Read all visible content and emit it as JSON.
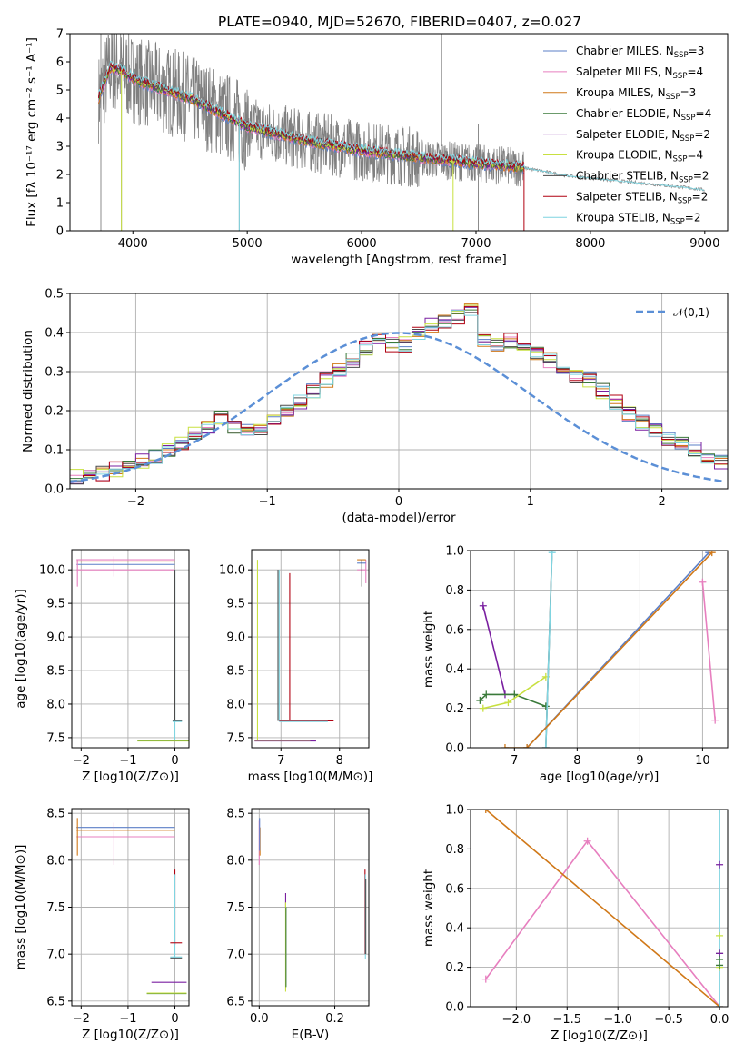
{
  "title": "PLATE=0940, MJD=52670, FIBERID=0407, z=0.027",
  "colors": {
    "chabrier_miles": "#5b7fc7",
    "salpeter_miles": "#e77fbf",
    "kroupa_miles": "#d07818",
    "chabrier_elodie": "#3a7a3a",
    "salpeter_elodie": "#7a1fa0",
    "kroupa_elodie": "#c8e040",
    "chabrier_stelib": "#4a4a4a",
    "salpeter_stelib": "#b00010",
    "kroupa_stelib": "#7fd4e0",
    "data": "#808080",
    "normal": "#5b8fd6",
    "grid": "#b0b0b0"
  },
  "chart_data": [
    {
      "type": "line",
      "title": "PLATE=0940, MJD=52670, FIBERID=0407, z=0.027",
      "xlabel": "wavelength [Angstrom, rest frame]",
      "ylabel": "Flux [fλ 10⁻¹⁷ erg cm⁻² s⁻¹ A⁻¹]",
      "xlim": [
        3450,
        9200
      ],
      "ylim": [
        0,
        7
      ],
      "xticks": [
        "4000",
        "5000",
        "6000",
        "7000",
        "8000",
        "9000"
      ],
      "yticks": [
        "0",
        "1",
        "2",
        "3",
        "4",
        "5",
        "6",
        "7"
      ],
      "legend_position": "top-right",
      "legend": [
        "Chabrier MILES, NSSP=3",
        "Salpeter MILES, NSSP=4",
        "Kroupa MILES, NSSP=3",
        "Chabrier ELODIE, NSSP=4",
        "Salpeter ELODIE, NSSP=2",
        "Kroupa ELODIE, NSSP=4",
        "Chabrier STELIB, NSSP=2",
        "Salpeter STELIB, NSSP=2",
        "Kroupa STELIB, NSSP=2"
      ],
      "legend_names": [
        "Chabrier MILES, N",
        "Salpeter MILES, N",
        "Kroupa MILES, N",
        "Chabrier ELODIE, N",
        "Salpeter ELODIE, N",
        "Kroupa ELODIE, N",
        "Chabrier STELIB, N",
        "Salpeter STELIB, N",
        "Kroupa STELIB, N"
      ],
      "legend_nssp": [
        "3",
        "4",
        "3",
        "4",
        "2",
        "4",
        "2",
        "2",
        "2"
      ],
      "model_continuum": {
        "x": [
          3700,
          3800,
          3900,
          4000,
          4200,
          4500,
          4800,
          5000,
          5500,
          6000,
          6500,
          7000,
          7400,
          7800,
          8300,
          8800,
          9000
        ],
        "y": [
          4.7,
          5.8,
          5.7,
          5.4,
          5.1,
          4.7,
          4.1,
          3.7,
          3.2,
          2.85,
          2.6,
          2.4,
          2.25,
          1.95,
          1.75,
          1.55,
          1.45
        ]
      }
    },
    {
      "type": "bar",
      "xlabel": "(data-model)/error",
      "ylabel": "Normed distribution",
      "xlim": [
        -2.5,
        2.5
      ],
      "ylim": [
        0,
        0.5
      ],
      "xticks": [
        "−2",
        "−1",
        "0",
        "1",
        "2"
      ],
      "yticks": [
        "0.0",
        "0.1",
        "0.2",
        "0.3",
        "0.4",
        "0.5"
      ],
      "legend_position": "top-right",
      "legend": [
        "𝒩(0,1)"
      ],
      "bin_width": 0.1,
      "histogram_base": [
        0.03,
        0.03,
        0.04,
        0.05,
        0.06,
        0.07,
        0.08,
        0.1,
        0.12,
        0.14,
        0.16,
        0.18,
        0.16,
        0.15,
        0.15,
        0.17,
        0.2,
        0.22,
        0.25,
        0.28,
        0.3,
        0.33,
        0.36,
        0.38,
        0.37,
        0.37,
        0.4,
        0.42,
        0.43,
        0.44,
        0.46,
        0.38,
        0.37,
        0.38,
        0.36,
        0.35,
        0.33,
        0.31,
        0.29,
        0.28,
        0.25,
        0.22,
        0.19,
        0.17,
        0.15,
        0.13,
        0.12,
        0.1,
        0.08,
        0.07
      ]
    },
    {
      "type": "scatter",
      "xlabel": "Z [log10(Z/Z⊙)]",
      "ylabel": "age [log10(age/yr)]",
      "xlim": [
        -2.2,
        0.3
      ],
      "ylim": [
        7.35,
        10.3
      ],
      "xticks": [
        "−2",
        "−1",
        "0"
      ],
      "yticks": [
        "7.5",
        "8.0",
        "8.5",
        "9.0",
        "9.5",
        "10.0"
      ]
    },
    {
      "type": "scatter",
      "xlabel": "mass [log10(M/M⊙)]",
      "xlim": [
        6.5,
        8.5
      ],
      "ylim": [
        7.35,
        10.3
      ],
      "xticks": [
        "7",
        "8"
      ],
      "yticks": [
        "7.5",
        "8.0",
        "8.5",
        "9.0",
        "9.5",
        "10.0"
      ]
    },
    {
      "type": "line",
      "xlabel": "age [log10(age/yr)]",
      "ylabel": "mass weight",
      "xlim": [
        6.3,
        10.4
      ],
      "ylim": [
        0,
        1
      ],
      "xticks": [
        "7",
        "8",
        "9",
        "10"
      ],
      "yticks": [
        "0.0",
        "0.2",
        "0.4",
        "0.6",
        "0.8",
        "1.0"
      ],
      "series": [
        {
          "key": "salpeter_elodie",
          "x": [
            6.5,
            6.85
          ],
          "y": [
            0.72,
            0.27
          ]
        },
        {
          "key": "chabrier_elodie",
          "x": [
            6.45,
            6.55,
            7.0,
            7.5
          ],
          "y": [
            0.24,
            0.27,
            0.27,
            0.21
          ]
        },
        {
          "key": "kroupa_elodie",
          "x": [
            6.5,
            6.9,
            7.5
          ],
          "y": [
            0.2,
            0.23,
            0.36
          ]
        },
        {
          "key": "chabrier_stelib",
          "x": [
            7.5,
            7.6
          ],
          "y": [
            0.0,
            1.0
          ]
        },
        {
          "key": "kroupa_stelib",
          "x": [
            7.5,
            7.6
          ],
          "y": [
            0.0,
            0.99
          ]
        },
        {
          "key": "chabrier_miles",
          "x": [
            7.2,
            10.1
          ],
          "y": [
            0.0,
            0.99
          ]
        },
        {
          "key": "kroupa_miles",
          "x": [
            6.85,
            7.2,
            10.15
          ],
          "y": [
            0.0,
            0.0,
            0.99
          ]
        },
        {
          "key": "salpeter_miles",
          "x": [
            10.0,
            10.2
          ],
          "y": [
            0.84,
            0.14
          ]
        }
      ]
    },
    {
      "type": "scatter",
      "xlabel": "Z [log10(Z/Z⊙)]",
      "ylabel": "mass [log10(M/M⊙)]",
      "xlim": [
        -2.2,
        0.3
      ],
      "ylim": [
        6.45,
        8.55
      ],
      "xticks": [
        "−2",
        "−1",
        "0"
      ],
      "yticks": [
        "6.5",
        "7.0",
        "7.5",
        "8.0",
        "8.5"
      ]
    },
    {
      "type": "scatter",
      "xlabel": "E(B-V)",
      "xlim": [
        -0.02,
        0.29
      ],
      "ylim": [
        6.45,
        8.55
      ],
      "xticks": [
        "0.0",
        "0.2"
      ],
      "yticks": [
        "6.5",
        "7.0",
        "7.5",
        "8.0",
        "8.5"
      ]
    },
    {
      "type": "line",
      "xlabel": "Z [log10(Z/Z⊙)]",
      "ylabel": "mass weight",
      "xlim": [
        -2.45,
        0.08
      ],
      "ylim": [
        0,
        1
      ],
      "xticks": [
        "−2.0",
        "−1.5",
        "−1.0",
        "−0.5",
        "0.0"
      ],
      "yticks": [
        "0.0",
        "0.2",
        "0.4",
        "0.6",
        "0.8",
        "1.0"
      ],
      "series": [
        {
          "key": "salpeter_miles",
          "x": [
            -2.3,
            -1.3,
            0.0
          ],
          "y": [
            0.14,
            0.84,
            0.0
          ]
        },
        {
          "key": "kroupa_miles",
          "x": [
            -2.3,
            0.0
          ],
          "y": [
            1.0,
            0.0
          ]
        },
        {
          "key": "kroupa_stelib",
          "x": [
            0.0,
            0.0
          ],
          "y": [
            0.0,
            1.0
          ]
        }
      ]
    }
  ]
}
